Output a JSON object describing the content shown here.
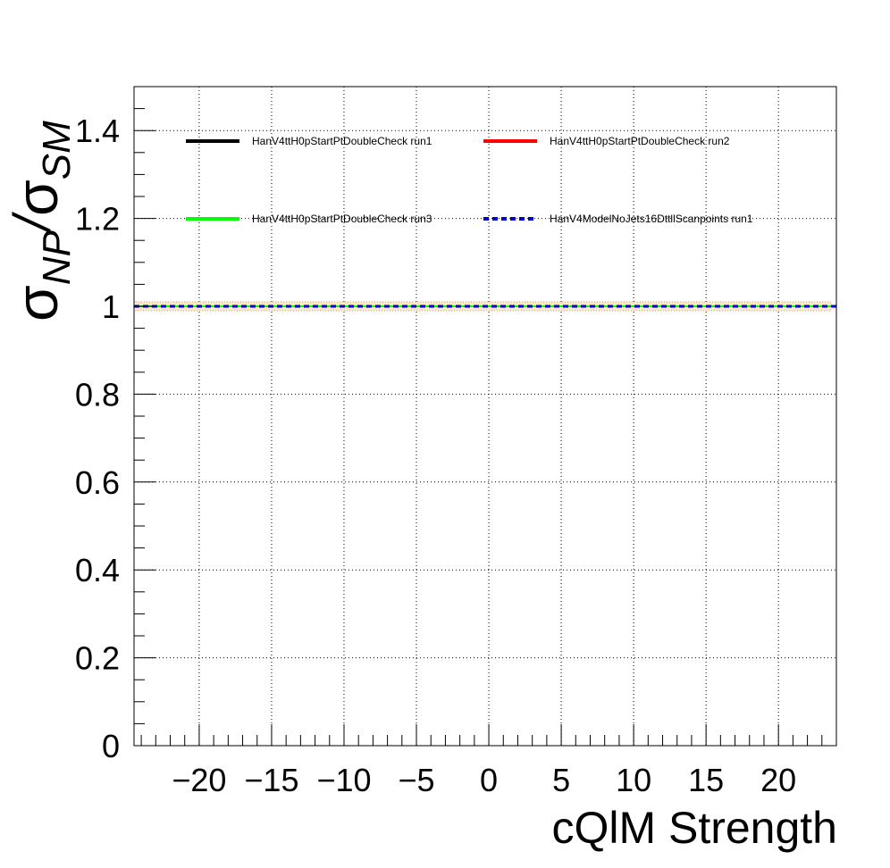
{
  "chart_data": {
    "type": "line",
    "xlabel": "cQlM Strength",
    "ylabel": {
      "sigma1": "σ",
      "sub1": "NP",
      "slash": "/",
      "sigma2": "σ",
      "sub2": "SM"
    },
    "xlim": [
      -24.5,
      24
    ],
    "ylim": [
      0,
      1.5
    ],
    "x_ticks": [
      -20,
      -15,
      -10,
      -5,
      0,
      5,
      10,
      15,
      20
    ],
    "x_tick_labels": [
      "−20",
      "−15",
      "−10",
      "−5",
      "0",
      "5",
      "10",
      "15",
      "20"
    ],
    "y_ticks": [
      0,
      0.2,
      0.4,
      0.6,
      0.8,
      1,
      1.2,
      1.4
    ],
    "y_tick_labels": [
      "0",
      "0.2",
      "0.4",
      "0.6",
      "0.8",
      "1",
      "1.2",
      "1.4"
    ],
    "grid": true,
    "legend_position": "top",
    "series": [
      {
        "name": "HanV4ttH0pStartPtDoubleCheck run1",
        "color": "#000000",
        "style": "solid",
        "x": [
          -24.5,
          24
        ],
        "y": [
          1,
          1
        ]
      },
      {
        "name": "HanV4ttH0pStartPtDoubleCheck run2",
        "color": "#ff0000",
        "style": "solid",
        "x": [
          -24.5,
          24
        ],
        "y": [
          1,
          1
        ]
      },
      {
        "name": "HanV4ttH0pStartPtDoubleCheck run3",
        "color": "#00ff00",
        "style": "solid",
        "x": [
          -24.5,
          24
        ],
        "y": [
          1,
          1
        ]
      },
      {
        "name": "HanV4ModelNoJets16DttllScanpoints run1",
        "color": "#0000cc",
        "style": "dashed",
        "x": [
          -24.5,
          24
        ],
        "y": [
          1,
          1
        ]
      }
    ]
  }
}
